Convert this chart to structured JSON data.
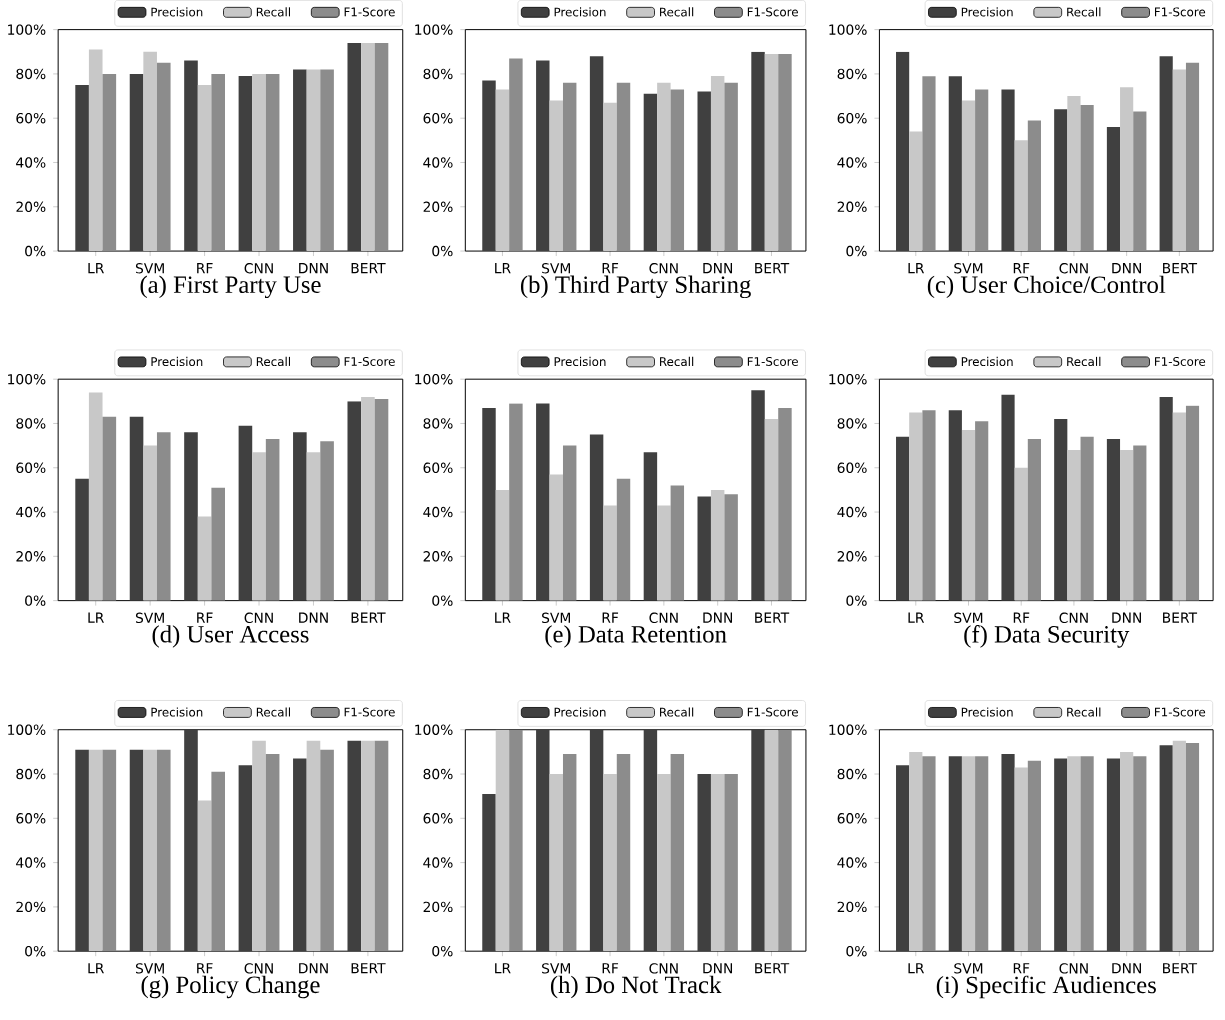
{
  "chart_data": [
    {
      "type": "bar",
      "title": "(a) First Party Use",
      "categories": [
        "LR",
        "SVM",
        "RF",
        "CNN",
        "DNN",
        "BERT"
      ],
      "ylim": [
        0,
        100
      ],
      "yticks": [
        {
          "value": 0,
          "label": "0%"
        },
        {
          "value": 20,
          "label": "20%"
        },
        {
          "value": 40,
          "label": "40%"
        },
        {
          "value": 60,
          "label": "60%"
        },
        {
          "value": 80,
          "label": "80%"
        },
        {
          "value": 100,
          "label": "100%"
        }
      ],
      "legend": "top right",
      "series": [
        {
          "name": "Precision",
          "color": "#404040",
          "values": [
            75,
            80,
            86,
            79,
            82,
            94
          ]
        },
        {
          "name": "Recall",
          "color": "#c8c8c8",
          "values": [
            91,
            90,
            75,
            80,
            82,
            94
          ]
        },
        {
          "name": "F1-Score",
          "color": "#8c8c8c",
          "values": [
            80,
            85,
            80,
            80,
            82,
            94
          ]
        }
      ]
    },
    {
      "type": "bar",
      "title": "(b) Third Party Sharing",
      "categories": [
        "LR",
        "SVM",
        "RF",
        "CNN",
        "DNN",
        "BERT"
      ],
      "ylim": [
        0,
        100
      ],
      "yticks": [
        {
          "value": 0,
          "label": "0%"
        },
        {
          "value": 20,
          "label": "20%"
        },
        {
          "value": 40,
          "label": "40%"
        },
        {
          "value": 60,
          "label": "60%"
        },
        {
          "value": 80,
          "label": "80%"
        },
        {
          "value": 100,
          "label": "100%"
        }
      ],
      "legend": "top right",
      "series": [
        {
          "name": "Precision",
          "color": "#404040",
          "values": [
            77,
            86,
            88,
            71,
            72,
            90
          ]
        },
        {
          "name": "Recall",
          "color": "#c8c8c8",
          "values": [
            73,
            68,
            67,
            76,
            79,
            89
          ]
        },
        {
          "name": "F1-Score",
          "color": "#8c8c8c",
          "values": [
            87,
            76,
            76,
            73,
            76,
            89
          ]
        }
      ]
    },
    {
      "type": "bar",
      "title": "(c) User Choice/Control",
      "categories": [
        "LR",
        "SVM",
        "RF",
        "CNN",
        "DNN",
        "BERT"
      ],
      "ylim": [
        0,
        100
      ],
      "yticks": [
        {
          "value": 0,
          "label": "0%"
        },
        {
          "value": 20,
          "label": "20%"
        },
        {
          "value": 40,
          "label": "40%"
        },
        {
          "value": 60,
          "label": "60%"
        },
        {
          "value": 80,
          "label": "80%"
        },
        {
          "value": 100,
          "label": "100%"
        }
      ],
      "legend": "top right",
      "series": [
        {
          "name": "Precision",
          "color": "#404040",
          "values": [
            90,
            79,
            73,
            64,
            56,
            88
          ]
        },
        {
          "name": "Recall",
          "color": "#c8c8c8",
          "values": [
            54,
            68,
            50,
            70,
            74,
            82
          ]
        },
        {
          "name": "F1-Score",
          "color": "#8c8c8c",
          "values": [
            79,
            73,
            59,
            66,
            63,
            85
          ]
        }
      ]
    },
    {
      "type": "bar",
      "title": "(d) User Access",
      "categories": [
        "LR",
        "SVM",
        "RF",
        "CNN",
        "DNN",
        "BERT"
      ],
      "ylim": [
        0,
        100
      ],
      "yticks": [
        {
          "value": 0,
          "label": "0%"
        },
        {
          "value": 20,
          "label": "20%"
        },
        {
          "value": 40,
          "label": "40%"
        },
        {
          "value": 60,
          "label": "60%"
        },
        {
          "value": 80,
          "label": "80%"
        },
        {
          "value": 100,
          "label": "100%"
        }
      ],
      "legend": "top right",
      "series": [
        {
          "name": "Precision",
          "color": "#404040",
          "values": [
            55,
            83,
            76,
            79,
            76,
            90
          ]
        },
        {
          "name": "Recall",
          "color": "#c8c8c8",
          "values": [
            94,
            70,
            38,
            67,
            67,
            92
          ]
        },
        {
          "name": "F1-Score",
          "color": "#8c8c8c",
          "values": [
            83,
            76,
            51,
            73,
            72,
            91
          ]
        }
      ]
    },
    {
      "type": "bar",
      "title": "(e) Data Retention",
      "categories": [
        "LR",
        "SVM",
        "RF",
        "CNN",
        "DNN",
        "BERT"
      ],
      "ylim": [
        0,
        100
      ],
      "yticks": [
        {
          "value": 0,
          "label": "0%"
        },
        {
          "value": 20,
          "label": "20%"
        },
        {
          "value": 40,
          "label": "40%"
        },
        {
          "value": 60,
          "label": "60%"
        },
        {
          "value": 80,
          "label": "80%"
        },
        {
          "value": 100,
          "label": "100%"
        }
      ],
      "legend": "top right",
      "series": [
        {
          "name": "Precision",
          "color": "#404040",
          "values": [
            87,
            89,
            75,
            67,
            47,
            95
          ]
        },
        {
          "name": "Recall",
          "color": "#c8c8c8",
          "values": [
            50,
            57,
            43,
            43,
            50,
            82
          ]
        },
        {
          "name": "F1-Score",
          "color": "#8c8c8c",
          "values": [
            89,
            70,
            55,
            52,
            48,
            87
          ]
        }
      ]
    },
    {
      "type": "bar",
      "title": "(f) Data Security",
      "categories": [
        "LR",
        "SVM",
        "RF",
        "CNN",
        "DNN",
        "BERT"
      ],
      "ylim": [
        0,
        100
      ],
      "yticks": [
        {
          "value": 0,
          "label": "0%"
        },
        {
          "value": 20,
          "label": "20%"
        },
        {
          "value": 40,
          "label": "40%"
        },
        {
          "value": 60,
          "label": "60%"
        },
        {
          "value": 80,
          "label": "80%"
        },
        {
          "value": 100,
          "label": "100%"
        }
      ],
      "legend": "top right",
      "series": [
        {
          "name": "Precision",
          "color": "#404040",
          "values": [
            74,
            86,
            93,
            82,
            73,
            92
          ]
        },
        {
          "name": "Recall",
          "color": "#c8c8c8",
          "values": [
            85,
            77,
            60,
            68,
            68,
            85
          ]
        },
        {
          "name": "F1-Score",
          "color": "#8c8c8c",
          "values": [
            86,
            81,
            73,
            74,
            70,
            88
          ]
        }
      ]
    },
    {
      "type": "bar",
      "title": "(g) Policy Change",
      "categories": [
        "LR",
        "SVM",
        "RF",
        "CNN",
        "DNN",
        "BERT"
      ],
      "ylim": [
        0,
        100
      ],
      "yticks": [
        {
          "value": 0,
          "label": "0%"
        },
        {
          "value": 20,
          "label": "20%"
        },
        {
          "value": 40,
          "label": "40%"
        },
        {
          "value": 60,
          "label": "60%"
        },
        {
          "value": 80,
          "label": "80%"
        },
        {
          "value": 100,
          "label": "100%"
        }
      ],
      "legend": "top right",
      "series": [
        {
          "name": "Precision",
          "color": "#404040",
          "values": [
            91,
            91,
            100,
            84,
            87,
            95
          ]
        },
        {
          "name": "Recall",
          "color": "#c8c8c8",
          "values": [
            91,
            91,
            68,
            95,
            95,
            95
          ]
        },
        {
          "name": "F1-Score",
          "color": "#8c8c8c",
          "values": [
            91,
            91,
            81,
            89,
            91,
            95
          ]
        }
      ]
    },
    {
      "type": "bar",
      "title": "(h) Do Not Track",
      "categories": [
        "LR",
        "SVM",
        "RF",
        "CNN",
        "DNN",
        "BERT"
      ],
      "ylim": [
        0,
        100
      ],
      "yticks": [
        {
          "value": 0,
          "label": "0%"
        },
        {
          "value": 20,
          "label": "20%"
        },
        {
          "value": 40,
          "label": "40%"
        },
        {
          "value": 60,
          "label": "60%"
        },
        {
          "value": 80,
          "label": "80%"
        },
        {
          "value": 100,
          "label": "100%"
        }
      ],
      "legend": "top right",
      "series": [
        {
          "name": "Precision",
          "color": "#404040",
          "values": [
            71,
            100,
            100,
            100,
            80,
            100
          ]
        },
        {
          "name": "Recall",
          "color": "#c8c8c8",
          "values": [
            100,
            80,
            80,
            80,
            80,
            100
          ]
        },
        {
          "name": "F1-Score",
          "color": "#8c8c8c",
          "values": [
            100,
            89,
            89,
            89,
            80,
            100
          ]
        }
      ]
    },
    {
      "type": "bar",
      "title": "(i) Specific Audiences",
      "categories": [
        "LR",
        "SVM",
        "RF",
        "CNN",
        "DNN",
        "BERT"
      ],
      "ylim": [
        0,
        100
      ],
      "yticks": [
        {
          "value": 0,
          "label": "0%"
        },
        {
          "value": 20,
          "label": "20%"
        },
        {
          "value": 40,
          "label": "40%"
        },
        {
          "value": 60,
          "label": "60%"
        },
        {
          "value": 80,
          "label": "80%"
        },
        {
          "value": 100,
          "label": "100%"
        }
      ],
      "legend": "top right",
      "series": [
        {
          "name": "Precision",
          "color": "#404040",
          "values": [
            84,
            88,
            89,
            87,
            87,
            93
          ]
        },
        {
          "name": "Recall",
          "color": "#c8c8c8",
          "values": [
            90,
            88,
            83,
            88,
            90,
            95
          ]
        },
        {
          "name": "F1-Score",
          "color": "#8c8c8c",
          "values": [
            88,
            88,
            86,
            88,
            88,
            94
          ]
        }
      ]
    }
  ]
}
